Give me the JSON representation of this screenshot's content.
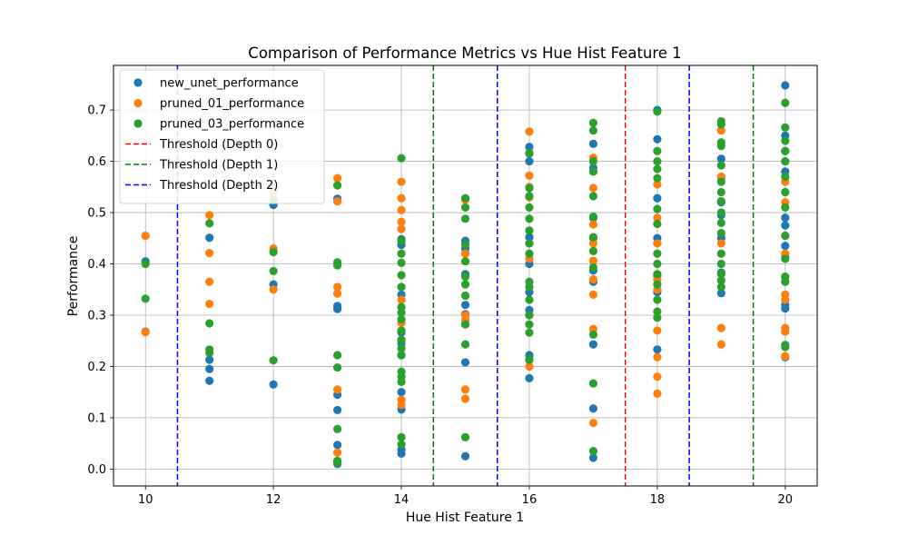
{
  "chart_data": {
    "type": "scatter",
    "title": "Comparison of Performance Metrics vs Hue Hist Feature 1",
    "xlabel": "Hue Hist Feature 1",
    "ylabel": "Performance",
    "xlim": [
      9.5,
      20.5
    ],
    "ylim": [
      -0.033,
      0.787
    ],
    "xticks": [
      10,
      12,
      14,
      16,
      18,
      20
    ],
    "yticks": [
      0.0,
      0.1,
      0.2,
      0.3,
      0.4,
      0.5,
      0.6,
      0.7
    ],
    "grid": true,
    "legend_position": "top-left",
    "series": [
      {
        "name": "new_unet_performance",
        "color": "#1f77b4",
        "points": [
          [
            10,
            0.405
          ],
          [
            10,
            0.268
          ],
          [
            11,
            0.451
          ],
          [
            11,
            0.213
          ],
          [
            11,
            0.195
          ],
          [
            11,
            0.172
          ],
          [
            12,
            0.515
          ],
          [
            12,
            0.36
          ],
          [
            12,
            0.165
          ],
          [
            13,
            0.527
          ],
          [
            13,
            0.318
          ],
          [
            13,
            0.312
          ],
          [
            13,
            0.145
          ],
          [
            13,
            0.115
          ],
          [
            13,
            0.047
          ],
          [
            13,
            0.01
          ],
          [
            14,
            0.448
          ],
          [
            14,
            0.437
          ],
          [
            14,
            0.34
          ],
          [
            14,
            0.266
          ],
          [
            14,
            0.245
          ],
          [
            14,
            0.222
          ],
          [
            14,
            0.15
          ],
          [
            14,
            0.116
          ],
          [
            14,
            0.038
          ],
          [
            14,
            0.03
          ],
          [
            15,
            0.445
          ],
          [
            15,
            0.43
          ],
          [
            15,
            0.38
          ],
          [
            15,
            0.32
          ],
          [
            15,
            0.302
          ],
          [
            15,
            0.208
          ],
          [
            15,
            0.025
          ],
          [
            16,
            0.628
          ],
          [
            16,
            0.615
          ],
          [
            16,
            0.6
          ],
          [
            16,
            0.452
          ],
          [
            16,
            0.44
          ],
          [
            16,
            0.4
          ],
          [
            16,
            0.345
          ],
          [
            16,
            0.31
          ],
          [
            16,
            0.3
          ],
          [
            16,
            0.222
          ],
          [
            16,
            0.213
          ],
          [
            16,
            0.177
          ],
          [
            17,
            0.634
          ],
          [
            17,
            0.587
          ],
          [
            17,
            0.49
          ],
          [
            17,
            0.45
          ],
          [
            17,
            0.387
          ],
          [
            17,
            0.365
          ],
          [
            17,
            0.243
          ],
          [
            17,
            0.118
          ],
          [
            17,
            0.022
          ],
          [
            18,
            0.7
          ],
          [
            18,
            0.643
          ],
          [
            18,
            0.528
          ],
          [
            18,
            0.45
          ],
          [
            18,
            0.44
          ],
          [
            18,
            0.377
          ],
          [
            18,
            0.345
          ],
          [
            18,
            0.233
          ],
          [
            19,
            0.605
          ],
          [
            19,
            0.568
          ],
          [
            19,
            0.52
          ],
          [
            19,
            0.495
          ],
          [
            19,
            0.45
          ],
          [
            19,
            0.383
          ],
          [
            19,
            0.343
          ],
          [
            20,
            0.748
          ],
          [
            20,
            0.65
          ],
          [
            20,
            0.62
          ],
          [
            20,
            0.58
          ],
          [
            20,
            0.49
          ],
          [
            20,
            0.475
          ],
          [
            20,
            0.435
          ],
          [
            20,
            0.415
          ],
          [
            20,
            0.32
          ],
          [
            20,
            0.313
          ],
          [
            20,
            0.218
          ]
        ]
      },
      {
        "name": "pruned_01_performance",
        "color": "#ff7f0e",
        "points": [
          [
            10,
            0.455
          ],
          [
            10,
            0.267
          ],
          [
            11,
            0.495
          ],
          [
            11,
            0.421
          ],
          [
            11,
            0.365
          ],
          [
            11,
            0.322
          ],
          [
            12,
            0.54
          ],
          [
            12,
            0.43
          ],
          [
            12,
            0.35
          ],
          [
            13,
            0.567
          ],
          [
            13,
            0.522
          ],
          [
            13,
            0.355
          ],
          [
            13,
            0.342
          ],
          [
            13,
            0.155
          ],
          [
            13,
            0.032
          ],
          [
            14,
            0.56
          ],
          [
            14,
            0.528
          ],
          [
            14,
            0.505
          ],
          [
            14,
            0.482
          ],
          [
            14,
            0.468
          ],
          [
            14,
            0.355
          ],
          [
            14,
            0.33
          ],
          [
            14,
            0.285
          ],
          [
            14,
            0.135
          ],
          [
            14,
            0.125
          ],
          [
            15,
            0.525
          ],
          [
            15,
            0.42
          ],
          [
            15,
            0.3
          ],
          [
            15,
            0.29
          ],
          [
            15,
            0.155
          ],
          [
            15,
            0.137
          ],
          [
            16,
            0.658
          ],
          [
            16,
            0.572
          ],
          [
            16,
            0.55
          ],
          [
            16,
            0.53
          ],
          [
            16,
            0.41
          ],
          [
            16,
            0.2
          ],
          [
            17,
            0.607
          ],
          [
            17,
            0.548
          ],
          [
            17,
            0.477
          ],
          [
            17,
            0.44
          ],
          [
            17,
            0.406
          ],
          [
            17,
            0.37
          ],
          [
            17,
            0.34
          ],
          [
            17,
            0.273
          ],
          [
            17,
            0.09
          ],
          [
            18,
            0.555
          ],
          [
            18,
            0.49
          ],
          [
            18,
            0.44
          ],
          [
            18,
            0.37
          ],
          [
            18,
            0.35
          ],
          [
            18,
            0.27
          ],
          [
            18,
            0.218
          ],
          [
            18,
            0.18
          ],
          [
            18,
            0.147
          ],
          [
            19,
            0.66
          ],
          [
            19,
            0.57
          ],
          [
            19,
            0.44
          ],
          [
            19,
            0.275
          ],
          [
            19,
            0.243
          ],
          [
            20,
            0.6
          ],
          [
            20,
            0.56
          ],
          [
            20,
            0.52
          ],
          [
            20,
            0.455
          ],
          [
            20,
            0.42
          ],
          [
            20,
            0.34
          ],
          [
            20,
            0.33
          ],
          [
            20,
            0.275
          ],
          [
            20,
            0.268
          ],
          [
            20,
            0.22
          ]
        ]
      },
      {
        "name": "pruned_03_performance",
        "color": "#2ca02c",
        "points": [
          [
            10,
            0.4
          ],
          [
            10,
            0.332
          ],
          [
            11,
            0.479
          ],
          [
            11,
            0.284
          ],
          [
            11,
            0.233
          ],
          [
            11,
            0.227
          ],
          [
            12,
            0.525
          ],
          [
            12,
            0.423
          ],
          [
            12,
            0.386
          ],
          [
            12,
            0.212
          ],
          [
            13,
            0.553
          ],
          [
            13,
            0.403
          ],
          [
            13,
            0.397
          ],
          [
            13,
            0.222
          ],
          [
            13,
            0.198
          ],
          [
            13,
            0.078
          ],
          [
            13,
            0.016
          ],
          [
            13,
            0.012
          ],
          [
            14,
            0.606
          ],
          [
            14,
            0.445
          ],
          [
            14,
            0.42
          ],
          [
            14,
            0.402
          ],
          [
            14,
            0.378
          ],
          [
            14,
            0.355
          ],
          [
            14,
            0.316
          ],
          [
            14,
            0.305
          ],
          [
            14,
            0.292
          ],
          [
            14,
            0.27
          ],
          [
            14,
            0.252
          ],
          [
            14,
            0.235
          ],
          [
            14,
            0.222
          ],
          [
            14,
            0.19
          ],
          [
            14,
            0.18
          ],
          [
            14,
            0.17
          ],
          [
            14,
            0.062
          ],
          [
            14,
            0.048
          ],
          [
            15,
            0.528
          ],
          [
            15,
            0.51
          ],
          [
            15,
            0.488
          ],
          [
            15,
            0.438
          ],
          [
            15,
            0.405
          ],
          [
            15,
            0.375
          ],
          [
            15,
            0.36
          ],
          [
            15,
            0.338
          ],
          [
            15,
            0.282
          ],
          [
            15,
            0.243
          ],
          [
            15,
            0.062
          ],
          [
            16,
            0.616
          ],
          [
            16,
            0.548
          ],
          [
            16,
            0.532
          ],
          [
            16,
            0.51
          ],
          [
            16,
            0.488
          ],
          [
            16,
            0.465
          ],
          [
            16,
            0.44
          ],
          [
            16,
            0.42
          ],
          [
            16,
            0.365
          ],
          [
            16,
            0.355
          ],
          [
            16,
            0.33
          ],
          [
            16,
            0.3
          ],
          [
            16,
            0.282
          ],
          [
            16,
            0.266
          ],
          [
            16,
            0.213
          ],
          [
            17,
            0.675
          ],
          [
            17,
            0.66
          ],
          [
            17,
            0.6
          ],
          [
            17,
            0.58
          ],
          [
            17,
            0.532
          ],
          [
            17,
            0.492
          ],
          [
            17,
            0.452
          ],
          [
            17,
            0.425
          ],
          [
            17,
            0.393
          ],
          [
            17,
            0.262
          ],
          [
            17,
            0.167
          ],
          [
            17,
            0.035
          ],
          [
            18,
            0.697
          ],
          [
            18,
            0.62
          ],
          [
            18,
            0.6
          ],
          [
            18,
            0.585
          ],
          [
            18,
            0.567
          ],
          [
            18,
            0.507
          ],
          [
            18,
            0.478
          ],
          [
            18,
            0.42
          ],
          [
            18,
            0.4
          ],
          [
            18,
            0.38
          ],
          [
            18,
            0.36
          ],
          [
            18,
            0.33
          ],
          [
            18,
            0.307
          ],
          [
            18,
            0.295
          ],
          [
            19,
            0.678
          ],
          [
            19,
            0.672
          ],
          [
            19,
            0.637
          ],
          [
            19,
            0.63
          ],
          [
            19,
            0.592
          ],
          [
            19,
            0.56
          ],
          [
            19,
            0.54
          ],
          [
            19,
            0.522
          ],
          [
            19,
            0.5
          ],
          [
            19,
            0.48
          ],
          [
            19,
            0.46
          ],
          [
            19,
            0.42
          ],
          [
            19,
            0.4
          ],
          [
            19,
            0.38
          ],
          [
            19,
            0.368
          ],
          [
            19,
            0.355
          ],
          [
            20,
            0.714
          ],
          [
            20,
            0.666
          ],
          [
            20,
            0.64
          ],
          [
            20,
            0.62
          ],
          [
            20,
            0.6
          ],
          [
            20,
            0.57
          ],
          [
            20,
            0.54
          ],
          [
            20,
            0.51
          ],
          [
            20,
            0.455
          ],
          [
            20,
            0.41
          ],
          [
            20,
            0.375
          ],
          [
            20,
            0.365
          ],
          [
            20,
            0.242
          ],
          [
            20,
            0.238
          ]
        ]
      }
    ],
    "thresholds": [
      {
        "name": "Threshold (Depth 0)",
        "color": "#ff0000",
        "x": [
          17.5
        ]
      },
      {
        "name": "Threshold (Depth 1)",
        "color": "#008000",
        "x": [
          14.5,
          19.5
        ]
      },
      {
        "name": "Threshold (Depth 2)",
        "color": "#0000ff",
        "x": [
          10.5,
          15.5,
          18.5
        ]
      }
    ]
  }
}
